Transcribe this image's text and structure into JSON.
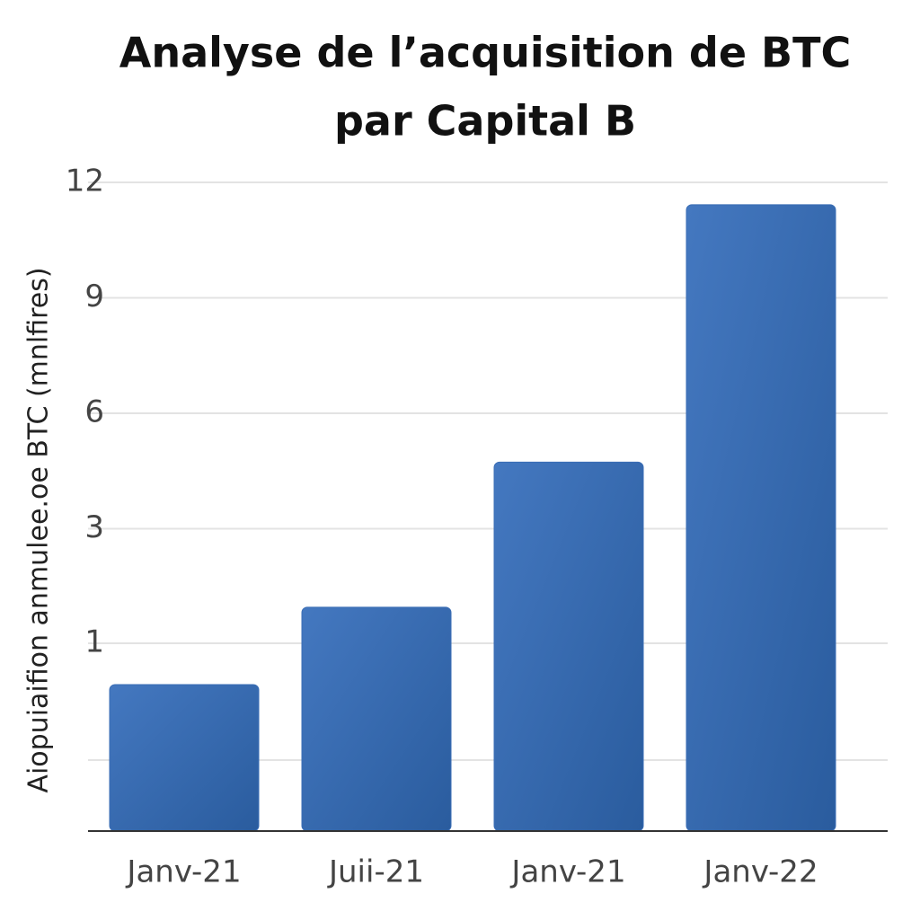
{
  "chart_data": {
    "type": "bar",
    "title": [
      "Analyse de l’acquisition de BTC",
      "par Capital B"
    ],
    "y_label": "Aiopuiaifion anmulee.oe BTC (mnlfires)",
    "categories": [
      "Janv-21",
      "Juii-21",
      "Janv-21",
      "Janv-22"
    ],
    "values": [
      0.78,
      1.63,
      4.73,
      11.42
    ],
    "color": "#3a6db5",
    "ylim": [
      0,
      12.4
    ],
    "yticks": [
      1,
      3,
      6,
      9,
      12
    ],
    "grid": true
  }
}
